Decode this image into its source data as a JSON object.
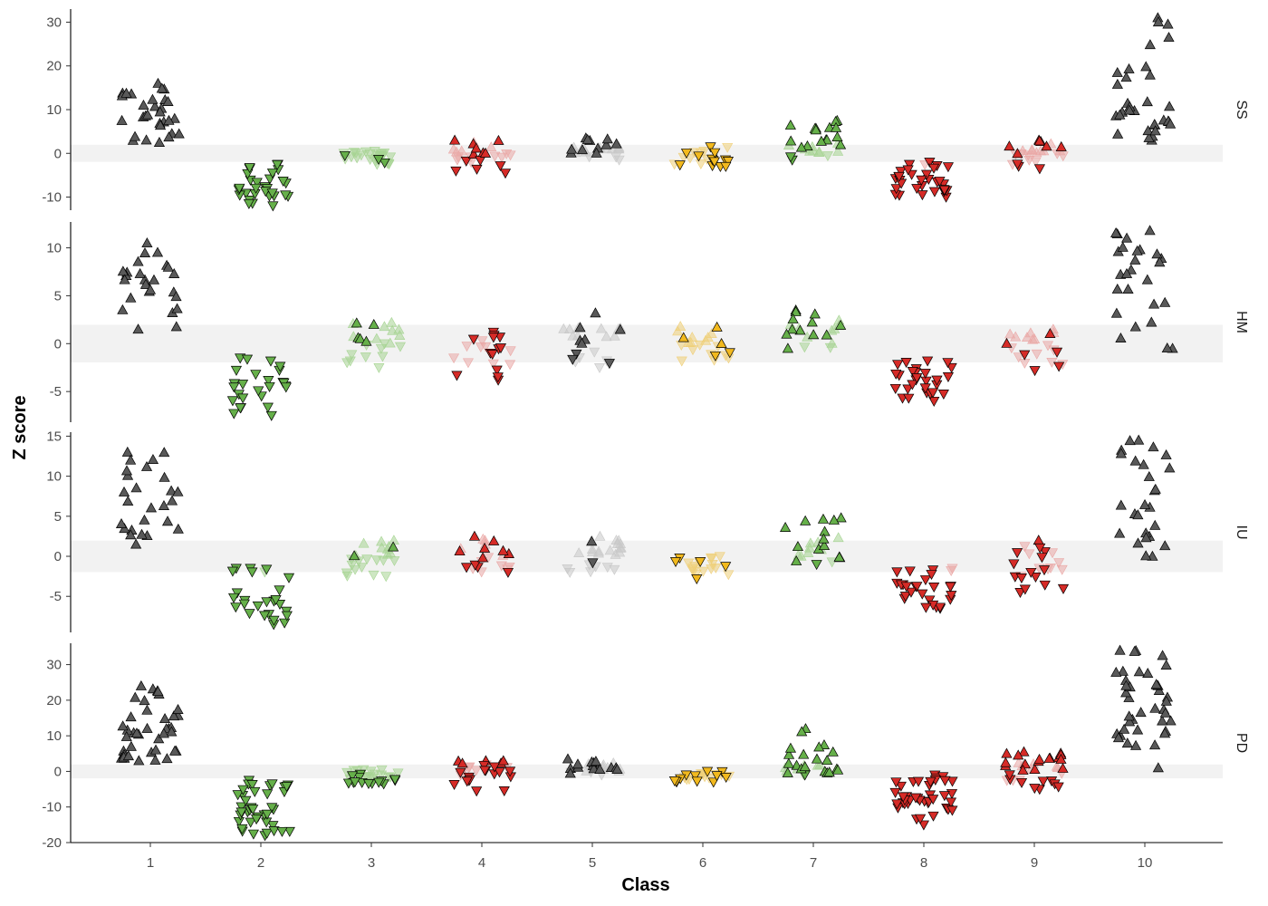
{
  "chart_data": {
    "type": "scatter",
    "title": "",
    "xlabel": "Class",
    "ylabel": "Z score",
    "grid": false,
    "legend": "none",
    "x_categories": [
      "1",
      "2",
      "3",
      "4",
      "5",
      "6",
      "7",
      "8",
      "9",
      "10"
    ],
    "colors": {
      "dark": "#595959",
      "green": "#66b04a",
      "red": "#d62b27",
      "orange": "#f2b91e",
      "faded_dark": "#c8c8c8",
      "faded_green": "#a6d492",
      "faded_red": "#eaa7a5",
      "faded_orange": "#efcf79"
    },
    "marker_up": "up-triangle: z-score above significance band",
    "marker_down": "down-triangle: z-score below significance band",
    "panels": [
      {
        "facet": "SS",
        "ylim": [
          -13,
          33
        ],
        "yticks": [
          -10,
          0,
          10,
          20,
          30
        ],
        "band": [
          -1.96,
          1.96
        ],
        "classes": [
          {
            "class": "1",
            "color": "dark",
            "direction": "up",
            "min": 2.5,
            "max": 16,
            "median": 10,
            "n": 30,
            "faded_fraction": 0
          },
          {
            "class": "2",
            "color": "green",
            "direction": "down",
            "min": -12,
            "max": -2.5,
            "median": -8,
            "n": 30,
            "faded_fraction": 0.05
          },
          {
            "class": "3",
            "color": "green",
            "direction": "down",
            "min": -2.5,
            "max": 0.5,
            "median": -1,
            "n": 26,
            "faded_fraction": 0.85
          },
          {
            "class": "4",
            "color": "red",
            "direction": "up",
            "min": -4.5,
            "max": 3,
            "median": 0,
            "n": 26,
            "faded_fraction": 0.5
          },
          {
            "class": "5",
            "color": "dark",
            "direction": "up",
            "min": -1.5,
            "max": 3.5,
            "median": 1,
            "n": 26,
            "faded_fraction": 0.65
          },
          {
            "class": "6",
            "color": "orange",
            "direction": "down",
            "min": -3,
            "max": 1.5,
            "median": -1.5,
            "n": 24,
            "faded_fraction": 0.7
          },
          {
            "class": "7",
            "color": "green",
            "direction": "up",
            "min": -1.5,
            "max": 7.5,
            "median": 2,
            "n": 28,
            "faded_fraction": 0.5
          },
          {
            "class": "8",
            "color": "red",
            "direction": "down",
            "min": -10,
            "max": -2,
            "median": -6,
            "n": 32,
            "faded_fraction": 0.1
          },
          {
            "class": "9",
            "color": "red",
            "direction": "up",
            "min": -3.5,
            "max": 3,
            "median": 0,
            "n": 26,
            "faded_fraction": 0.8
          },
          {
            "class": "10",
            "color": "dark",
            "direction": "up",
            "min": 3,
            "max": 31,
            "median": 11,
            "n": 32,
            "faded_fraction": 0
          }
        ]
      },
      {
        "facet": "HM",
        "ylim": [
          -8.2,
          12.7
        ],
        "yticks": [
          -5,
          0,
          5,
          10
        ],
        "band": [
          -1.96,
          1.96
        ],
        "classes": [
          {
            "class": "1",
            "color": "dark",
            "direction": "up",
            "min": 1.5,
            "max": 10.5,
            "median": 6.5,
            "n": 26,
            "faded_fraction": 0
          },
          {
            "class": "2",
            "color": "green",
            "direction": "down",
            "min": -7.5,
            "max": -1.5,
            "median": -4.5,
            "n": 26,
            "faded_fraction": 0.1
          },
          {
            "class": "3",
            "color": "green",
            "direction": "up",
            "min": -2.5,
            "max": 2.2,
            "median": 0,
            "n": 24,
            "faded_fraction": 0.75
          },
          {
            "class": "4",
            "color": "red",
            "direction": "down",
            "min": -3.8,
            "max": 1.2,
            "median": -1,
            "n": 22,
            "faded_fraction": 0.6
          },
          {
            "class": "5",
            "color": "dark",
            "direction": "up",
            "min": -2.5,
            "max": 3.2,
            "median": 1,
            "n": 24,
            "faded_fraction": 0.65
          },
          {
            "class": "6",
            "color": "orange",
            "direction": "up",
            "min": -1.8,
            "max": 1.8,
            "median": 0,
            "n": 22,
            "faded_fraction": 0.9
          },
          {
            "class": "7",
            "color": "green",
            "direction": "up",
            "min": -0.5,
            "max": 3.5,
            "median": 1.5,
            "n": 22,
            "faded_fraction": 0.6
          },
          {
            "class": "8",
            "color": "red",
            "direction": "down",
            "min": -6,
            "max": -1.8,
            "median": -3.8,
            "n": 28,
            "faded_fraction": 0.1
          },
          {
            "class": "9",
            "color": "red",
            "direction": "up",
            "min": -2.8,
            "max": 1.5,
            "median": 0,
            "n": 22,
            "faded_fraction": 0.75
          },
          {
            "class": "10",
            "color": "dark",
            "direction": "up",
            "min": -0.5,
            "max": 11.8,
            "median": 7,
            "n": 26,
            "faded_fraction": 0.05
          }
        ]
      },
      {
        "facet": "IU",
        "ylim": [
          -9.5,
          15.5
        ],
        "yticks": [
          -5,
          0,
          5,
          10,
          15
        ],
        "band": [
          -1.96,
          1.96
        ],
        "classes": [
          {
            "class": "1",
            "color": "dark",
            "direction": "up",
            "min": 1.5,
            "max": 13,
            "median": 8,
            "n": 26,
            "faded_fraction": 0.04
          },
          {
            "class": "2",
            "color": "green",
            "direction": "down",
            "min": -8.5,
            "max": -1.5,
            "median": -5.5,
            "n": 26,
            "faded_fraction": 0.1
          },
          {
            "class": "3",
            "color": "green",
            "direction": "up",
            "min": -2.5,
            "max": 2,
            "median": -0.5,
            "n": 24,
            "faded_fraction": 0.8
          },
          {
            "class": "4",
            "color": "red",
            "direction": "up",
            "min": -2,
            "max": 2.5,
            "median": 0.5,
            "n": 24,
            "faded_fraction": 0.6
          },
          {
            "class": "5",
            "color": "dark",
            "direction": "up",
            "min": -2,
            "max": 2.5,
            "median": 0,
            "n": 24,
            "faded_fraction": 0.9
          },
          {
            "class": "6",
            "color": "orange",
            "direction": "down",
            "min": -2.8,
            "max": 0,
            "median": -1.5,
            "n": 20,
            "faded_fraction": 0.8
          },
          {
            "class": "7",
            "color": "green",
            "direction": "up",
            "min": -1,
            "max": 4.8,
            "median": 1.5,
            "n": 24,
            "faded_fraction": 0.6
          },
          {
            "class": "8",
            "color": "red",
            "direction": "down",
            "min": -6.5,
            "max": -1.5,
            "median": -4,
            "n": 28,
            "faded_fraction": 0.15
          },
          {
            "class": "9",
            "color": "red",
            "direction": "down",
            "min": -4.5,
            "max": 2,
            "median": -1.5,
            "n": 24,
            "faded_fraction": 0.55
          },
          {
            "class": "10",
            "color": "dark",
            "direction": "up",
            "min": 0,
            "max": 14.5,
            "median": 9,
            "n": 26,
            "faded_fraction": 0.04
          }
        ]
      },
      {
        "facet": "PD",
        "ylim": [
          -20,
          36
        ],
        "yticks": [
          -20,
          -10,
          0,
          10,
          20,
          30
        ],
        "band": [
          -1.96,
          1.96
        ],
        "classes": [
          {
            "class": "1",
            "color": "dark",
            "direction": "up",
            "min": 3,
            "max": 24,
            "median": 12,
            "n": 40,
            "faded_fraction": 0
          },
          {
            "class": "2",
            "color": "green",
            "direction": "down",
            "min": -18,
            "max": -2.5,
            "median": -10,
            "n": 40,
            "faded_fraction": 0.05
          },
          {
            "class": "3",
            "color": "green",
            "direction": "down",
            "min": -3.5,
            "max": 0.5,
            "median": -1.5,
            "n": 30,
            "faded_fraction": 0.7
          },
          {
            "class": "4",
            "color": "red",
            "direction": "down",
            "min": -5.5,
            "max": 3,
            "median": 0,
            "n": 30,
            "faded_fraction": 0.5
          },
          {
            "class": "5",
            "color": "dark",
            "direction": "up",
            "min": -1,
            "max": 3.5,
            "median": 1,
            "n": 30,
            "faded_fraction": 0.65
          },
          {
            "class": "6",
            "color": "orange",
            "direction": "down",
            "min": -3,
            "max": 0,
            "median": -1.5,
            "n": 24,
            "faded_fraction": 0.75
          },
          {
            "class": "7",
            "color": "green",
            "direction": "up",
            "min": -1,
            "max": 12,
            "median": 2,
            "n": 28,
            "faded_fraction": 0.55
          },
          {
            "class": "8",
            "color": "red",
            "direction": "down",
            "min": -15,
            "max": -1,
            "median": -8,
            "n": 40,
            "faded_fraction": 0.1
          },
          {
            "class": "9",
            "color": "red",
            "direction": "up",
            "min": -5,
            "max": 5.5,
            "median": 1.5,
            "n": 36,
            "faded_fraction": 0.5
          },
          {
            "class": "10",
            "color": "dark",
            "direction": "up",
            "min": 1,
            "max": 34,
            "median": 16,
            "n": 40,
            "faded_fraction": 0
          }
        ]
      }
    ]
  }
}
